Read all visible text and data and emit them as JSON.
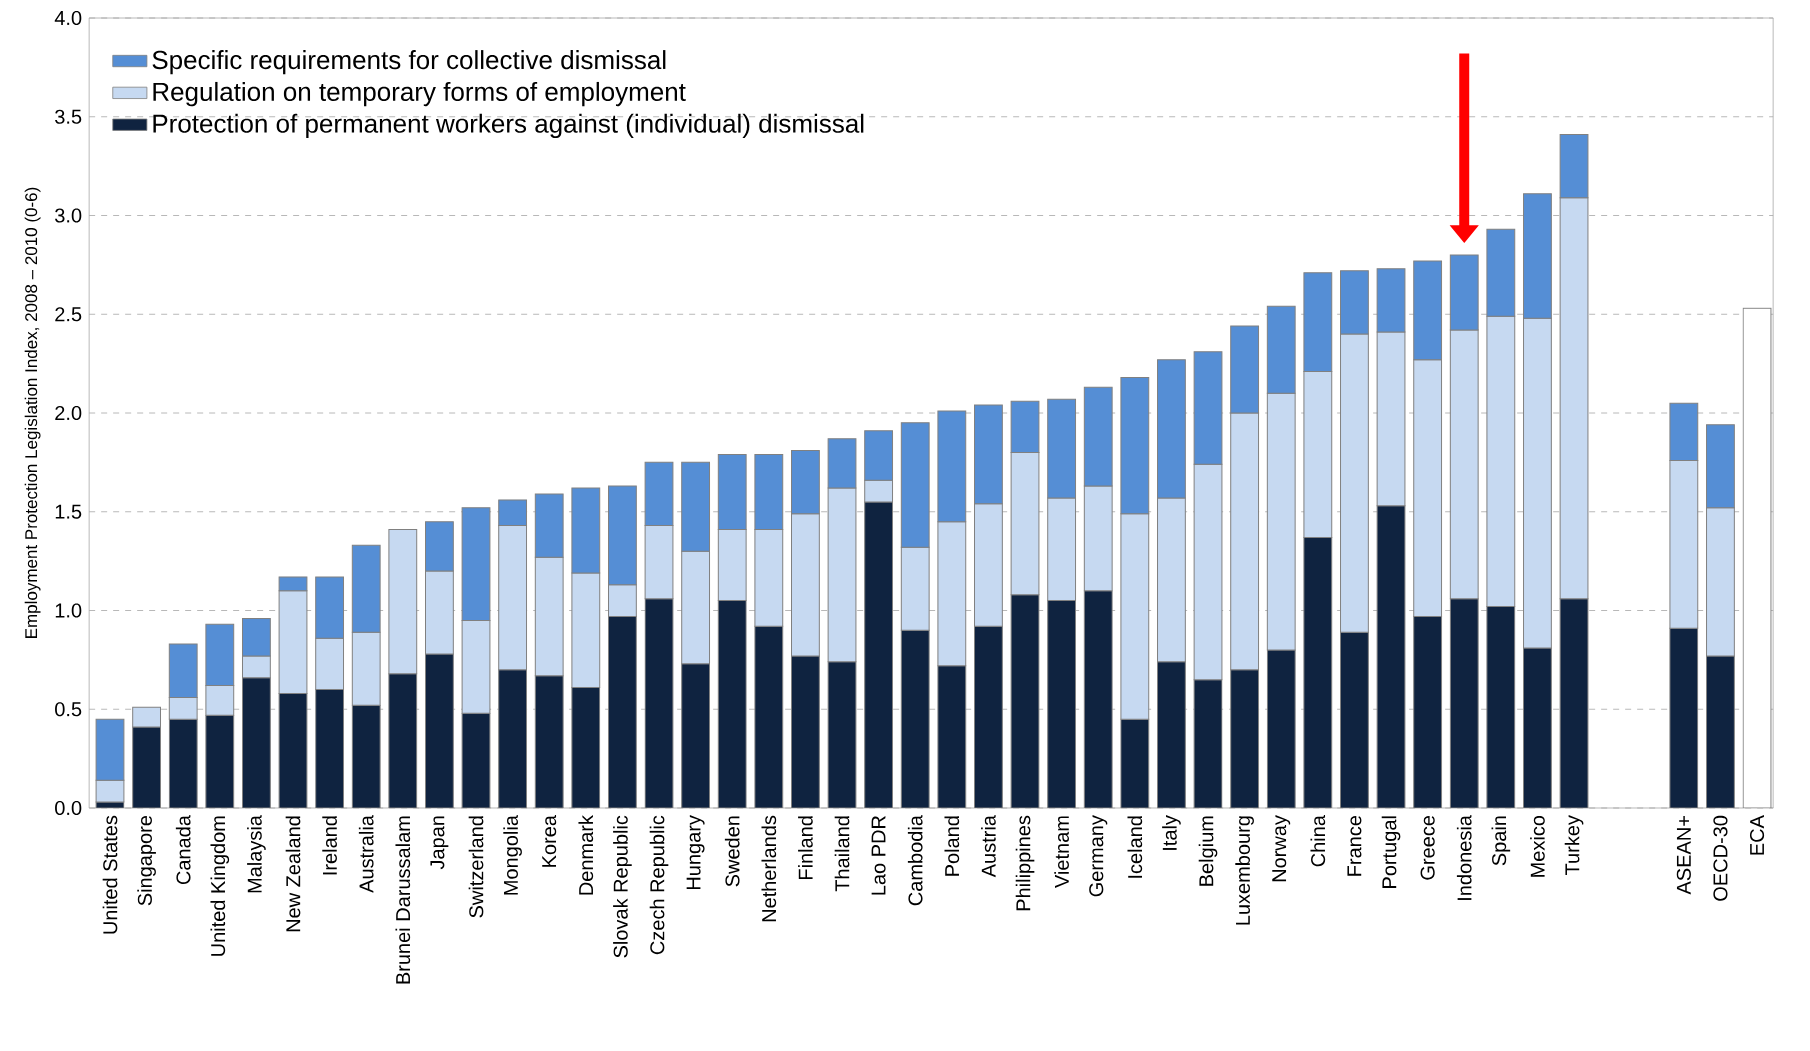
{
  "chart_data": {
    "type": "bar",
    "stacked": true,
    "ylabel": "Employment Protection Legislation Index, 2008 – 2010 (0-6)",
    "categories": [
      "United States",
      "Singapore",
      "Canada",
      "United Kingdom",
      "Malaysia",
      "New Zealand",
      "Ireland",
      "Australia",
      "Brunei Darussalam",
      "Japan",
      "Switzerland",
      "Mongolia",
      "Korea",
      "Denmark",
      "Slovak Republic",
      "Czech Republic",
      "Hungary",
      "Sweden",
      "Netherlands",
      "Finland",
      "Thailand",
      "Lao PDR",
      "Cambodia",
      "Poland",
      "Austria",
      "Philippines",
      "Vietnam",
      "Germany",
      "Iceland",
      "Italy",
      "Belgium",
      "Luxembourg",
      "Norway",
      "China",
      "France",
      "Portugal",
      "Greece",
      "Indonesia",
      "Spain",
      "Mexico",
      "Turkey",
      null,
      null,
      "ASEAN+",
      "OECD-30",
      "ECA"
    ],
    "series": [
      {
        "name": "Protection of permanent workers against (individual) dismissal",
        "color": "#0f2340",
        "values": [
          0.03,
          0.41,
          0.45,
          0.47,
          0.66,
          0.58,
          0.6,
          0.52,
          0.68,
          0.78,
          0.48,
          0.7,
          0.67,
          0.61,
          0.97,
          1.06,
          0.73,
          1.05,
          0.92,
          0.77,
          0.74,
          1.55,
          0.9,
          0.72,
          0.92,
          1.08,
          1.05,
          1.1,
          0.45,
          0.74,
          0.65,
          0.7,
          0.8,
          1.37,
          0.89,
          1.53,
          0.97,
          1.06,
          1.02,
          0.81,
          1.06,
          null,
          null,
          0.91,
          0.77,
          null
        ]
      },
      {
        "name": "Regulation on temporary forms of employment",
        "color": "#c6d9f1",
        "values": [
          0.11,
          0.1,
          0.11,
          0.15,
          0.11,
          0.52,
          0.26,
          0.37,
          0.73,
          0.42,
          0.47,
          0.73,
          0.6,
          0.58,
          0.16,
          0.37,
          0.57,
          0.36,
          0.49,
          0.72,
          0.88,
          0.11,
          0.42,
          0.73,
          0.62,
          0.72,
          0.52,
          0.53,
          1.04,
          0.83,
          1.09,
          1.3,
          1.3,
          0.84,
          1.51,
          0.88,
          1.3,
          1.36,
          1.47,
          1.67,
          2.03,
          null,
          null,
          0.85,
          0.75,
          null
        ]
      },
      {
        "name": "Specific requirements for collective dismissal",
        "color": "#558ed5",
        "values": [
          0.31,
          null,
          0.27,
          0.31,
          0.19,
          0.07,
          0.31,
          0.44,
          null,
          0.25,
          0.57,
          0.13,
          0.32,
          0.43,
          0.5,
          0.32,
          0.45,
          0.38,
          0.38,
          0.32,
          0.25,
          0.25,
          0.63,
          0.56,
          0.5,
          0.26,
          0.5,
          0.5,
          0.69,
          0.7,
          0.57,
          0.44,
          0.44,
          0.5,
          0.32,
          0.32,
          0.5,
          0.38,
          0.44,
          0.63,
          0.32,
          null,
          null,
          0.29,
          0.42,
          null
        ]
      },
      {
        "color": "#ffffff",
        "values": [
          null,
          null,
          null,
          null,
          null,
          null,
          null,
          null,
          null,
          null,
          null,
          null,
          null,
          null,
          null,
          null,
          null,
          null,
          null,
          null,
          null,
          null,
          null,
          null,
          null,
          null,
          null,
          null,
          null,
          null,
          null,
          null,
          null,
          null,
          null,
          null,
          null,
          null,
          null,
          null,
          null,
          null,
          null,
          null,
          null,
          2.53
        ]
      }
    ],
    "ylim": [
      0,
      4
    ],
    "yticks": [
      {
        "value": 0,
        "label": "0.0"
      },
      {
        "value": 0.5,
        "label": "0.5"
      },
      {
        "value": 1,
        "label": "1.0"
      },
      {
        "value": 1.5,
        "label": "1.5"
      },
      {
        "value": 2,
        "label": "2.0"
      },
      {
        "value": 2.5,
        "label": "2.5"
      },
      {
        "value": 3,
        "label": "3.0"
      },
      {
        "value": 3.5,
        "label": "3.5"
      },
      {
        "value": 4,
        "label": "4.0"
      }
    ],
    "grid": "y",
    "legend": "top left"
  }
}
